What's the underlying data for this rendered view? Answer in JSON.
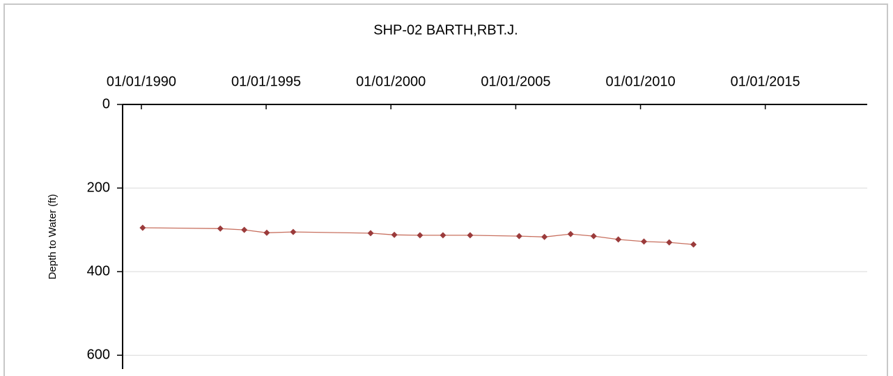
{
  "chart_data": {
    "type": "line",
    "title": "SHP-02  BARTH,RBT.J.",
    "y_label": "Depth to Water (ft)",
    "x": [
      "1990-01-20",
      "1993-03-01",
      "1994-02-15",
      "1995-01-10",
      "1996-02-01",
      "1999-03-10",
      "2000-02-20",
      "2001-03-01",
      "2002-02-01",
      "2003-03-05",
      "2005-02-20",
      "2006-02-25",
      "2007-03-15",
      "2008-02-15",
      "2009-02-10",
      "2010-02-20",
      "2011-02-25",
      "2012-02-15"
    ],
    "series": [
      {
        "name": "Depth to Water",
        "color": "#c8705f",
        "marker_color": "#9b3b3b",
        "values": [
          295,
          297,
          300,
          307,
          305,
          308,
          312,
          313,
          313,
          313,
          315,
          317,
          310,
          315,
          323,
          328,
          330,
          335
        ]
      }
    ],
    "xlim": [
      "1989-04-01",
      "2019-02-01"
    ],
    "xticks": [
      {
        "value": "1990-01-01",
        "label": "01/01/1990"
      },
      {
        "value": "1995-01-01",
        "label": "01/01/1995"
      },
      {
        "value": "2000-01-01",
        "label": "01/01/2000"
      },
      {
        "value": "2005-01-01",
        "label": "01/01/2005"
      },
      {
        "value": "2010-01-01",
        "label": "01/01/2010"
      },
      {
        "value": "2015-01-01",
        "label": "01/01/2015"
      }
    ],
    "ylim": [
      0,
      633
    ],
    "yticks": [
      0,
      200,
      400,
      600
    ],
    "y_inverted": true,
    "x_axis_position": "top",
    "grid": true
  }
}
